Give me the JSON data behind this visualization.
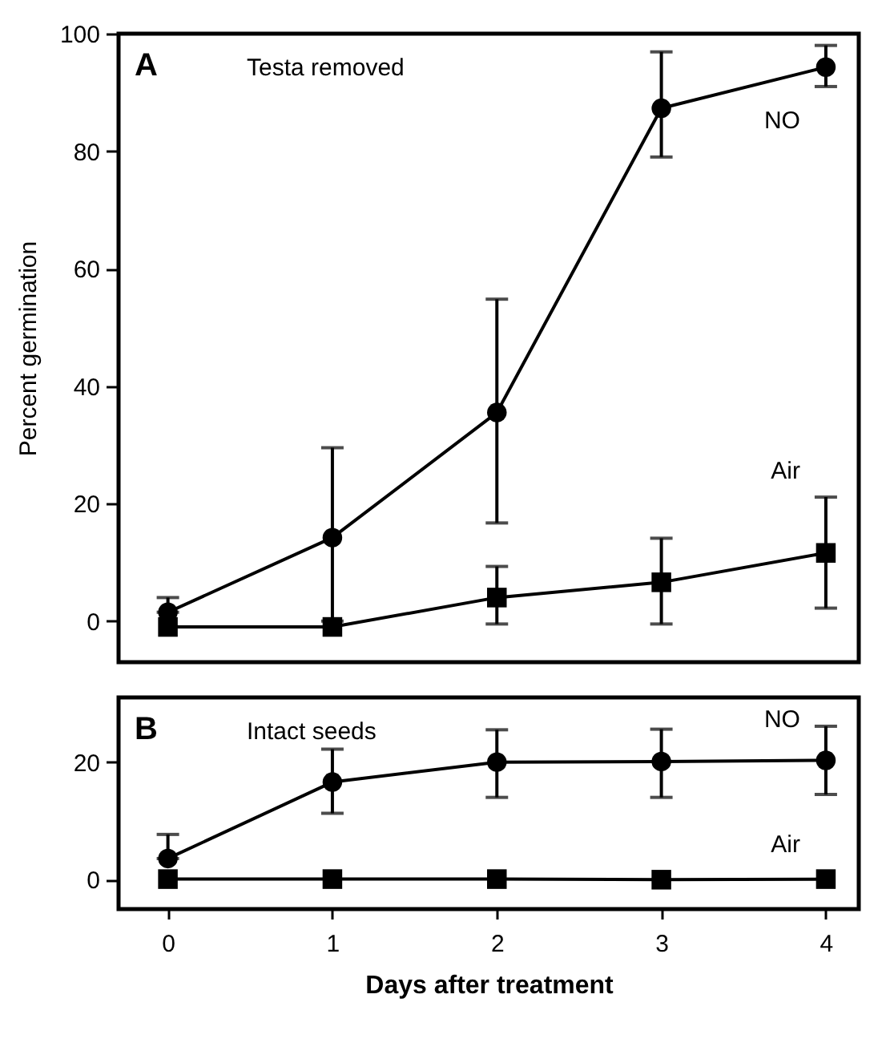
{
  "chart_data": [
    {
      "type": "line",
      "annotations": [
        "A",
        "Testa removed"
      ],
      "ylabel": "Percent germination",
      "x": [
        0,
        1,
        2,
        3,
        4
      ],
      "xlim": [
        -0.3,
        4.2
      ],
      "ylim": [
        -7,
        100
      ],
      "yticks": [
        0,
        20,
        40,
        60,
        80,
        100
      ],
      "tick_labels": "y",
      "grid": false,
      "line_style": "solid",
      "series": [
        {
          "name": "NO",
          "color": "#000000",
          "marker": "circle",
          "values": [
            1.5,
            14.2,
            35.5,
            87.3,
            94.3
          ],
          "errors": [
            [
              1.5,
              4
            ],
            [
              0,
              29.5
            ],
            [
              16.7,
              54.8
            ],
            [
              79,
              96.9
            ],
            [
              91,
              98
            ]
          ]
        },
        {
          "name": "Air",
          "color": "#000000",
          "marker": "square",
          "values": [
            -1,
            -1,
            4,
            6.6,
            11.6
          ],
          "errors": [
            null,
            null,
            [
              -0.5,
              9.3
            ],
            [
              -0.5,
              14.1
            ],
            [
              2.2,
              21.1
            ]
          ]
        }
      ]
    },
    {
      "type": "line",
      "annotations": [
        "B",
        "Intact seeds"
      ],
      "xlabel": "Days after treatment",
      "x": [
        0,
        1,
        2,
        3,
        4
      ],
      "xlim": [
        -0.3,
        4.2
      ],
      "xticks": [
        0,
        1,
        2,
        3,
        4
      ],
      "ylim": [
        -5,
        31
      ],
      "yticks": [
        0,
        20
      ],
      "grid": false,
      "line_style": "solid",
      "series": [
        {
          "name": "NO",
          "color": "#000000",
          "marker": "circle",
          "values": [
            3.6,
            16.6,
            20,
            20.1,
            20.3
          ],
          "errors": [
            [
              3.6,
              7.7
            ],
            [
              11.3,
              22.2
            ],
            [
              14,
              25.5
            ],
            [
              14,
              25.6
            ],
            [
              14.5,
              26.1
            ]
          ]
        },
        {
          "name": "Air",
          "color": "#000000",
          "marker": "square",
          "values": [
            0.1,
            0.1,
            0.1,
            0,
            0.1
          ]
        }
      ]
    }
  ]
}
